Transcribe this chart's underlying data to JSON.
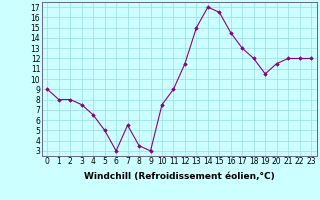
{
  "x": [
    0,
    1,
    2,
    3,
    4,
    5,
    6,
    7,
    8,
    9,
    10,
    11,
    12,
    13,
    14,
    15,
    16,
    17,
    18,
    19,
    20,
    21,
    22,
    23
  ],
  "y": [
    9.0,
    8.0,
    8.0,
    7.5,
    6.5,
    5.0,
    3.0,
    5.5,
    3.5,
    3.0,
    7.5,
    9.0,
    11.5,
    15.0,
    17.0,
    16.5,
    14.5,
    13.0,
    12.0,
    10.5,
    11.5,
    12.0,
    12.0,
    12.0
  ],
  "line_color": "#880088",
  "marker": "D",
  "markersize": 1.8,
  "linewidth": 0.8,
  "xlabel": "Windchill (Refroidissement éolien,°C)",
  "yticks": [
    3,
    4,
    5,
    6,
    7,
    8,
    9,
    10,
    11,
    12,
    13,
    14,
    15,
    16,
    17
  ],
  "xtick_labels": [
    "0",
    "1",
    "2",
    "3",
    "4",
    "5",
    "6",
    "7",
    "8",
    "9",
    "10",
    "11",
    "12",
    "13",
    "14",
    "15",
    "16",
    "17",
    "18",
    "19",
    "20",
    "21",
    "22",
    "23"
  ],
  "ylim": [
    2.5,
    17.5
  ],
  "xlim": [
    -0.5,
    23.5
  ],
  "bg_color": "#ccffff",
  "grid_color": "#99dddd",
  "tick_fontsize": 5.5,
  "xlabel_fontsize": 6.5,
  "spine_color": "#666688"
}
